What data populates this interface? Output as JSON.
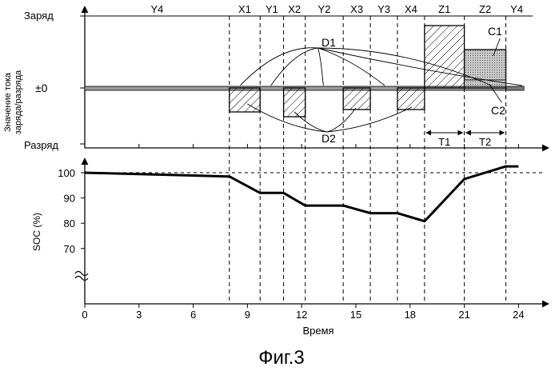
{
  "figure_caption": "Фиг.3",
  "colors": {
    "ink": "#000000",
    "background": "#ffffff",
    "baseline": "#9a9a9a",
    "dotted_fill": "#c8c8c8"
  },
  "top_panel": {
    "ylabel_line1": "Значение тока",
    "ylabel_line2": "заряда/разряда",
    "y_level_labels": {
      "charge": "Заряд",
      "zero": "±0",
      "discharge": "Разряд"
    },
    "interval_labels": [
      {
        "label": "Y4",
        "from": 0,
        "to": 8
      },
      {
        "label": "X1",
        "from": 8,
        "to": 9.7
      },
      {
        "label": "Y1",
        "from": 9.7,
        "to": 11
      },
      {
        "label": "X2",
        "from": 11,
        "to": 12.2
      },
      {
        "label": "Y2",
        "from": 12.2,
        "to": 14.3
      },
      {
        "label": "X3",
        "from": 14.3,
        "to": 15.8
      },
      {
        "label": "Y3",
        "from": 15.8,
        "to": 17.3
      },
      {
        "label": "X4",
        "from": 17.3,
        "to": 18.8
      },
      {
        "label": "Z1",
        "from": 18.8,
        "to": 21
      },
      {
        "label": "Z2",
        "from": 21,
        "to": 23.3
      },
      {
        "label": "Y4",
        "from": 23.3,
        "to": 24.5
      }
    ],
    "boundaries": [
      8,
      9.7,
      11,
      12.2,
      14.3,
      15.8,
      17.3,
      18.8,
      21,
      23.3
    ],
    "discharge_blocks": [
      {
        "from": 8,
        "to": 9.7,
        "value": -1
      },
      {
        "from": 11,
        "to": 12.2,
        "value": -1.2
      },
      {
        "from": 14.3,
        "to": 15.8,
        "value": -0.9
      },
      {
        "from": 17.3,
        "to": 18.8,
        "value": -0.9
      }
    ],
    "charge_blocks": [
      {
        "from": 18.8,
        "to": 21,
        "value": 2.6,
        "pattern": "hatch"
      },
      {
        "from": 21,
        "to": 23.3,
        "value": 1.6,
        "pattern": "dotted"
      }
    ],
    "annotations": {
      "d1": "D1",
      "d2": "D2",
      "c1": "C1",
      "c2": "C2"
    },
    "period_labels": [
      {
        "label": "T1",
        "from": 18.8,
        "to": 21
      },
      {
        "label": "T2",
        "from": 21,
        "to": 23.3
      }
    ]
  },
  "chart_data": {
    "type": "line",
    "title": "",
    "xlabel": "Время",
    "ylabel": "SOC (%)",
    "xlim": [
      0,
      24.5
    ],
    "ylim": [
      70,
      100
    ],
    "xticks": [
      0,
      3,
      6,
      9,
      12,
      15,
      18,
      21,
      24
    ],
    "yticks": [
      70,
      80,
      90,
      100
    ],
    "y_axis_break": true,
    "reference_line": 100,
    "series": [
      {
        "x": [
          0,
          8,
          9.7,
          11,
          12.2,
          14.3,
          15.8,
          17.3,
          18.8,
          21,
          23.3,
          24
        ],
        "y": [
          100,
          98.5,
          92,
          92,
          87,
          87,
          84,
          84,
          80.8,
          97.5,
          102.5,
          102.5
        ]
      }
    ]
  }
}
